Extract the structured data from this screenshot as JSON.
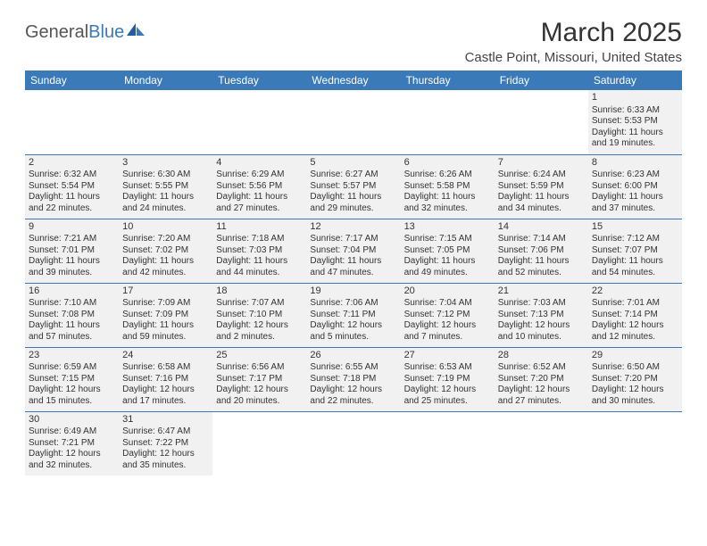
{
  "logo": {
    "main": "General",
    "accent": "Blue"
  },
  "title": "March 2025",
  "location": "Castle Point, Missouri, United States",
  "headerRow": {
    "bg": "#3a7ab8",
    "fg": "#ffffff"
  },
  "cellBg": "#f1f1f1",
  "borderColor": "#3a7ab8",
  "days": [
    "Sunday",
    "Monday",
    "Tuesday",
    "Wednesday",
    "Thursday",
    "Friday",
    "Saturday"
  ],
  "weeks": [
    [
      null,
      null,
      null,
      null,
      null,
      null,
      {
        "n": "1",
        "sr": "Sunrise: 6:33 AM",
        "ss": "Sunset: 5:53 PM",
        "d1": "Daylight: 11 hours",
        "d2": "and 19 minutes."
      }
    ],
    [
      {
        "n": "2",
        "sr": "Sunrise: 6:32 AM",
        "ss": "Sunset: 5:54 PM",
        "d1": "Daylight: 11 hours",
        "d2": "and 22 minutes."
      },
      {
        "n": "3",
        "sr": "Sunrise: 6:30 AM",
        "ss": "Sunset: 5:55 PM",
        "d1": "Daylight: 11 hours",
        "d2": "and 24 minutes."
      },
      {
        "n": "4",
        "sr": "Sunrise: 6:29 AM",
        "ss": "Sunset: 5:56 PM",
        "d1": "Daylight: 11 hours",
        "d2": "and 27 minutes."
      },
      {
        "n": "5",
        "sr": "Sunrise: 6:27 AM",
        "ss": "Sunset: 5:57 PM",
        "d1": "Daylight: 11 hours",
        "d2": "and 29 minutes."
      },
      {
        "n": "6",
        "sr": "Sunrise: 6:26 AM",
        "ss": "Sunset: 5:58 PM",
        "d1": "Daylight: 11 hours",
        "d2": "and 32 minutes."
      },
      {
        "n": "7",
        "sr": "Sunrise: 6:24 AM",
        "ss": "Sunset: 5:59 PM",
        "d1": "Daylight: 11 hours",
        "d2": "and 34 minutes."
      },
      {
        "n": "8",
        "sr": "Sunrise: 6:23 AM",
        "ss": "Sunset: 6:00 PM",
        "d1": "Daylight: 11 hours",
        "d2": "and 37 minutes."
      }
    ],
    [
      {
        "n": "9",
        "sr": "Sunrise: 7:21 AM",
        "ss": "Sunset: 7:01 PM",
        "d1": "Daylight: 11 hours",
        "d2": "and 39 minutes."
      },
      {
        "n": "10",
        "sr": "Sunrise: 7:20 AM",
        "ss": "Sunset: 7:02 PM",
        "d1": "Daylight: 11 hours",
        "d2": "and 42 minutes."
      },
      {
        "n": "11",
        "sr": "Sunrise: 7:18 AM",
        "ss": "Sunset: 7:03 PM",
        "d1": "Daylight: 11 hours",
        "d2": "and 44 minutes."
      },
      {
        "n": "12",
        "sr": "Sunrise: 7:17 AM",
        "ss": "Sunset: 7:04 PM",
        "d1": "Daylight: 11 hours",
        "d2": "and 47 minutes."
      },
      {
        "n": "13",
        "sr": "Sunrise: 7:15 AM",
        "ss": "Sunset: 7:05 PM",
        "d1": "Daylight: 11 hours",
        "d2": "and 49 minutes."
      },
      {
        "n": "14",
        "sr": "Sunrise: 7:14 AM",
        "ss": "Sunset: 7:06 PM",
        "d1": "Daylight: 11 hours",
        "d2": "and 52 minutes."
      },
      {
        "n": "15",
        "sr": "Sunrise: 7:12 AM",
        "ss": "Sunset: 7:07 PM",
        "d1": "Daylight: 11 hours",
        "d2": "and 54 minutes."
      }
    ],
    [
      {
        "n": "16",
        "sr": "Sunrise: 7:10 AM",
        "ss": "Sunset: 7:08 PM",
        "d1": "Daylight: 11 hours",
        "d2": "and 57 minutes."
      },
      {
        "n": "17",
        "sr": "Sunrise: 7:09 AM",
        "ss": "Sunset: 7:09 PM",
        "d1": "Daylight: 11 hours",
        "d2": "and 59 minutes."
      },
      {
        "n": "18",
        "sr": "Sunrise: 7:07 AM",
        "ss": "Sunset: 7:10 PM",
        "d1": "Daylight: 12 hours",
        "d2": "and 2 minutes."
      },
      {
        "n": "19",
        "sr": "Sunrise: 7:06 AM",
        "ss": "Sunset: 7:11 PM",
        "d1": "Daylight: 12 hours",
        "d2": "and 5 minutes."
      },
      {
        "n": "20",
        "sr": "Sunrise: 7:04 AM",
        "ss": "Sunset: 7:12 PM",
        "d1": "Daylight: 12 hours",
        "d2": "and 7 minutes."
      },
      {
        "n": "21",
        "sr": "Sunrise: 7:03 AM",
        "ss": "Sunset: 7:13 PM",
        "d1": "Daylight: 12 hours",
        "d2": "and 10 minutes."
      },
      {
        "n": "22",
        "sr": "Sunrise: 7:01 AM",
        "ss": "Sunset: 7:14 PM",
        "d1": "Daylight: 12 hours",
        "d2": "and 12 minutes."
      }
    ],
    [
      {
        "n": "23",
        "sr": "Sunrise: 6:59 AM",
        "ss": "Sunset: 7:15 PM",
        "d1": "Daylight: 12 hours",
        "d2": "and 15 minutes."
      },
      {
        "n": "24",
        "sr": "Sunrise: 6:58 AM",
        "ss": "Sunset: 7:16 PM",
        "d1": "Daylight: 12 hours",
        "d2": "and 17 minutes."
      },
      {
        "n": "25",
        "sr": "Sunrise: 6:56 AM",
        "ss": "Sunset: 7:17 PM",
        "d1": "Daylight: 12 hours",
        "d2": "and 20 minutes."
      },
      {
        "n": "26",
        "sr": "Sunrise: 6:55 AM",
        "ss": "Sunset: 7:18 PM",
        "d1": "Daylight: 12 hours",
        "d2": "and 22 minutes."
      },
      {
        "n": "27",
        "sr": "Sunrise: 6:53 AM",
        "ss": "Sunset: 7:19 PM",
        "d1": "Daylight: 12 hours",
        "d2": "and 25 minutes."
      },
      {
        "n": "28",
        "sr": "Sunrise: 6:52 AM",
        "ss": "Sunset: 7:20 PM",
        "d1": "Daylight: 12 hours",
        "d2": "and 27 minutes."
      },
      {
        "n": "29",
        "sr": "Sunrise: 6:50 AM",
        "ss": "Sunset: 7:20 PM",
        "d1": "Daylight: 12 hours",
        "d2": "and 30 minutes."
      }
    ],
    [
      {
        "n": "30",
        "sr": "Sunrise: 6:49 AM",
        "ss": "Sunset: 7:21 PM",
        "d1": "Daylight: 12 hours",
        "d2": "and 32 minutes."
      },
      {
        "n": "31",
        "sr": "Sunrise: 6:47 AM",
        "ss": "Sunset: 7:22 PM",
        "d1": "Daylight: 12 hours",
        "d2": "and 35 minutes."
      },
      null,
      null,
      null,
      null,
      null
    ]
  ]
}
